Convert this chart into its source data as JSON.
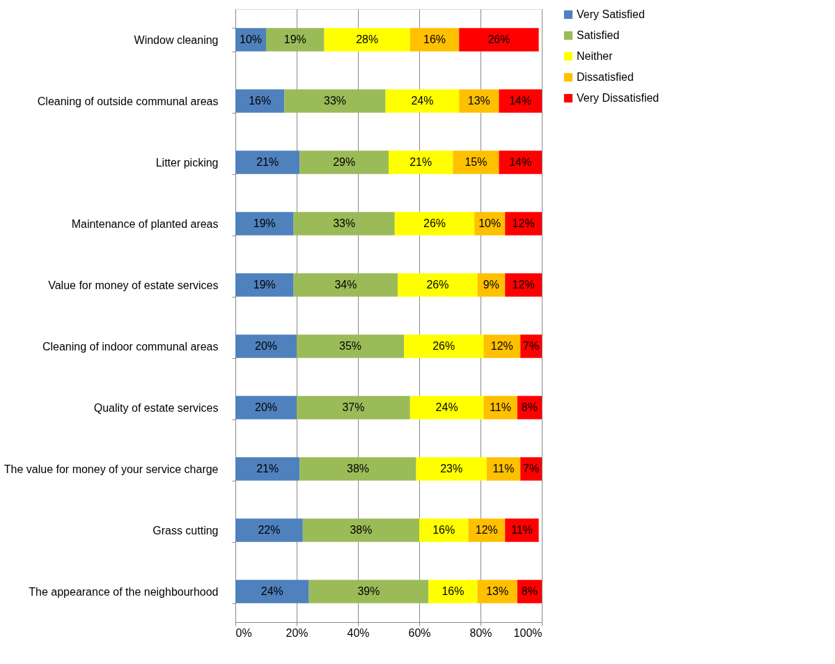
{
  "chart_data": {
    "type": "bar",
    "orientation": "horizontal",
    "stacked": true,
    "categories": [
      "Window cleaning",
      "Cleaning of outside communal areas",
      "Litter picking",
      "Maintenance of planted areas",
      "Value for money of estate services",
      "Cleaning of indoor communal areas",
      "Quality of estate services",
      "The value for money of your service charge",
      "Grass cutting",
      "The appearance of the neighbourhood"
    ],
    "series": [
      {
        "name": "Very Satisfied",
        "color": "#4f81bd",
        "values": [
          10,
          16,
          21,
          19,
          19,
          20,
          20,
          21,
          22,
          24
        ],
        "value_labels": [
          "10%",
          "16%",
          "21%",
          "19%",
          "19%",
          "20%",
          "20%",
          "21%",
          "22%",
          "24%"
        ]
      },
      {
        "name": "Satisfied",
        "color": "#9bbb59",
        "values": [
          19,
          33,
          29,
          33,
          34,
          35,
          37,
          38,
          38,
          39
        ],
        "value_labels": [
          "19%",
          "33%",
          "29%",
          "33%",
          "34%",
          "35%",
          "37%",
          "38%",
          "38%",
          "39%"
        ]
      },
      {
        "name": "Neither",
        "color": "#ffff00",
        "values": [
          28,
          24,
          21,
          26,
          26,
          26,
          24,
          23,
          16,
          16
        ],
        "value_labels": [
          "28%",
          "24%",
          "21%",
          "26%",
          "26%",
          "26%",
          "24%",
          "23%",
          "16%",
          "16%"
        ]
      },
      {
        "name": "Dissatisfied",
        "color": "#ffc000",
        "values": [
          16,
          13,
          15,
          10,
          9,
          12,
          11,
          11,
          12,
          13
        ],
        "value_labels": [
          "16%",
          "13%",
          "15%",
          "10%",
          "9%",
          "12%",
          "11%",
          "11%",
          "12%",
          "13%"
        ]
      },
      {
        "name": "Very Dissatisfied",
        "color": "#ff0000",
        "values": [
          26,
          14,
          14,
          12,
          12,
          7,
          8,
          7,
          11,
          8
        ],
        "value_labels": [
          "26%",
          "14%",
          "14%",
          "12%",
          "12%",
          "7%",
          "8%",
          "7%",
          "11%",
          "8%"
        ]
      }
    ],
    "xlim": [
      0,
      100
    ],
    "xticks": [
      {
        "value": 0,
        "label": "0%"
      },
      {
        "value": 20,
        "label": "20%"
      },
      {
        "value": 40,
        "label": "40%"
      },
      {
        "value": 60,
        "label": "60%"
      },
      {
        "value": 80,
        "label": "80%"
      },
      {
        "value": 100,
        "label": "100%"
      }
    ],
    "grid": "x",
    "legend": "right"
  }
}
